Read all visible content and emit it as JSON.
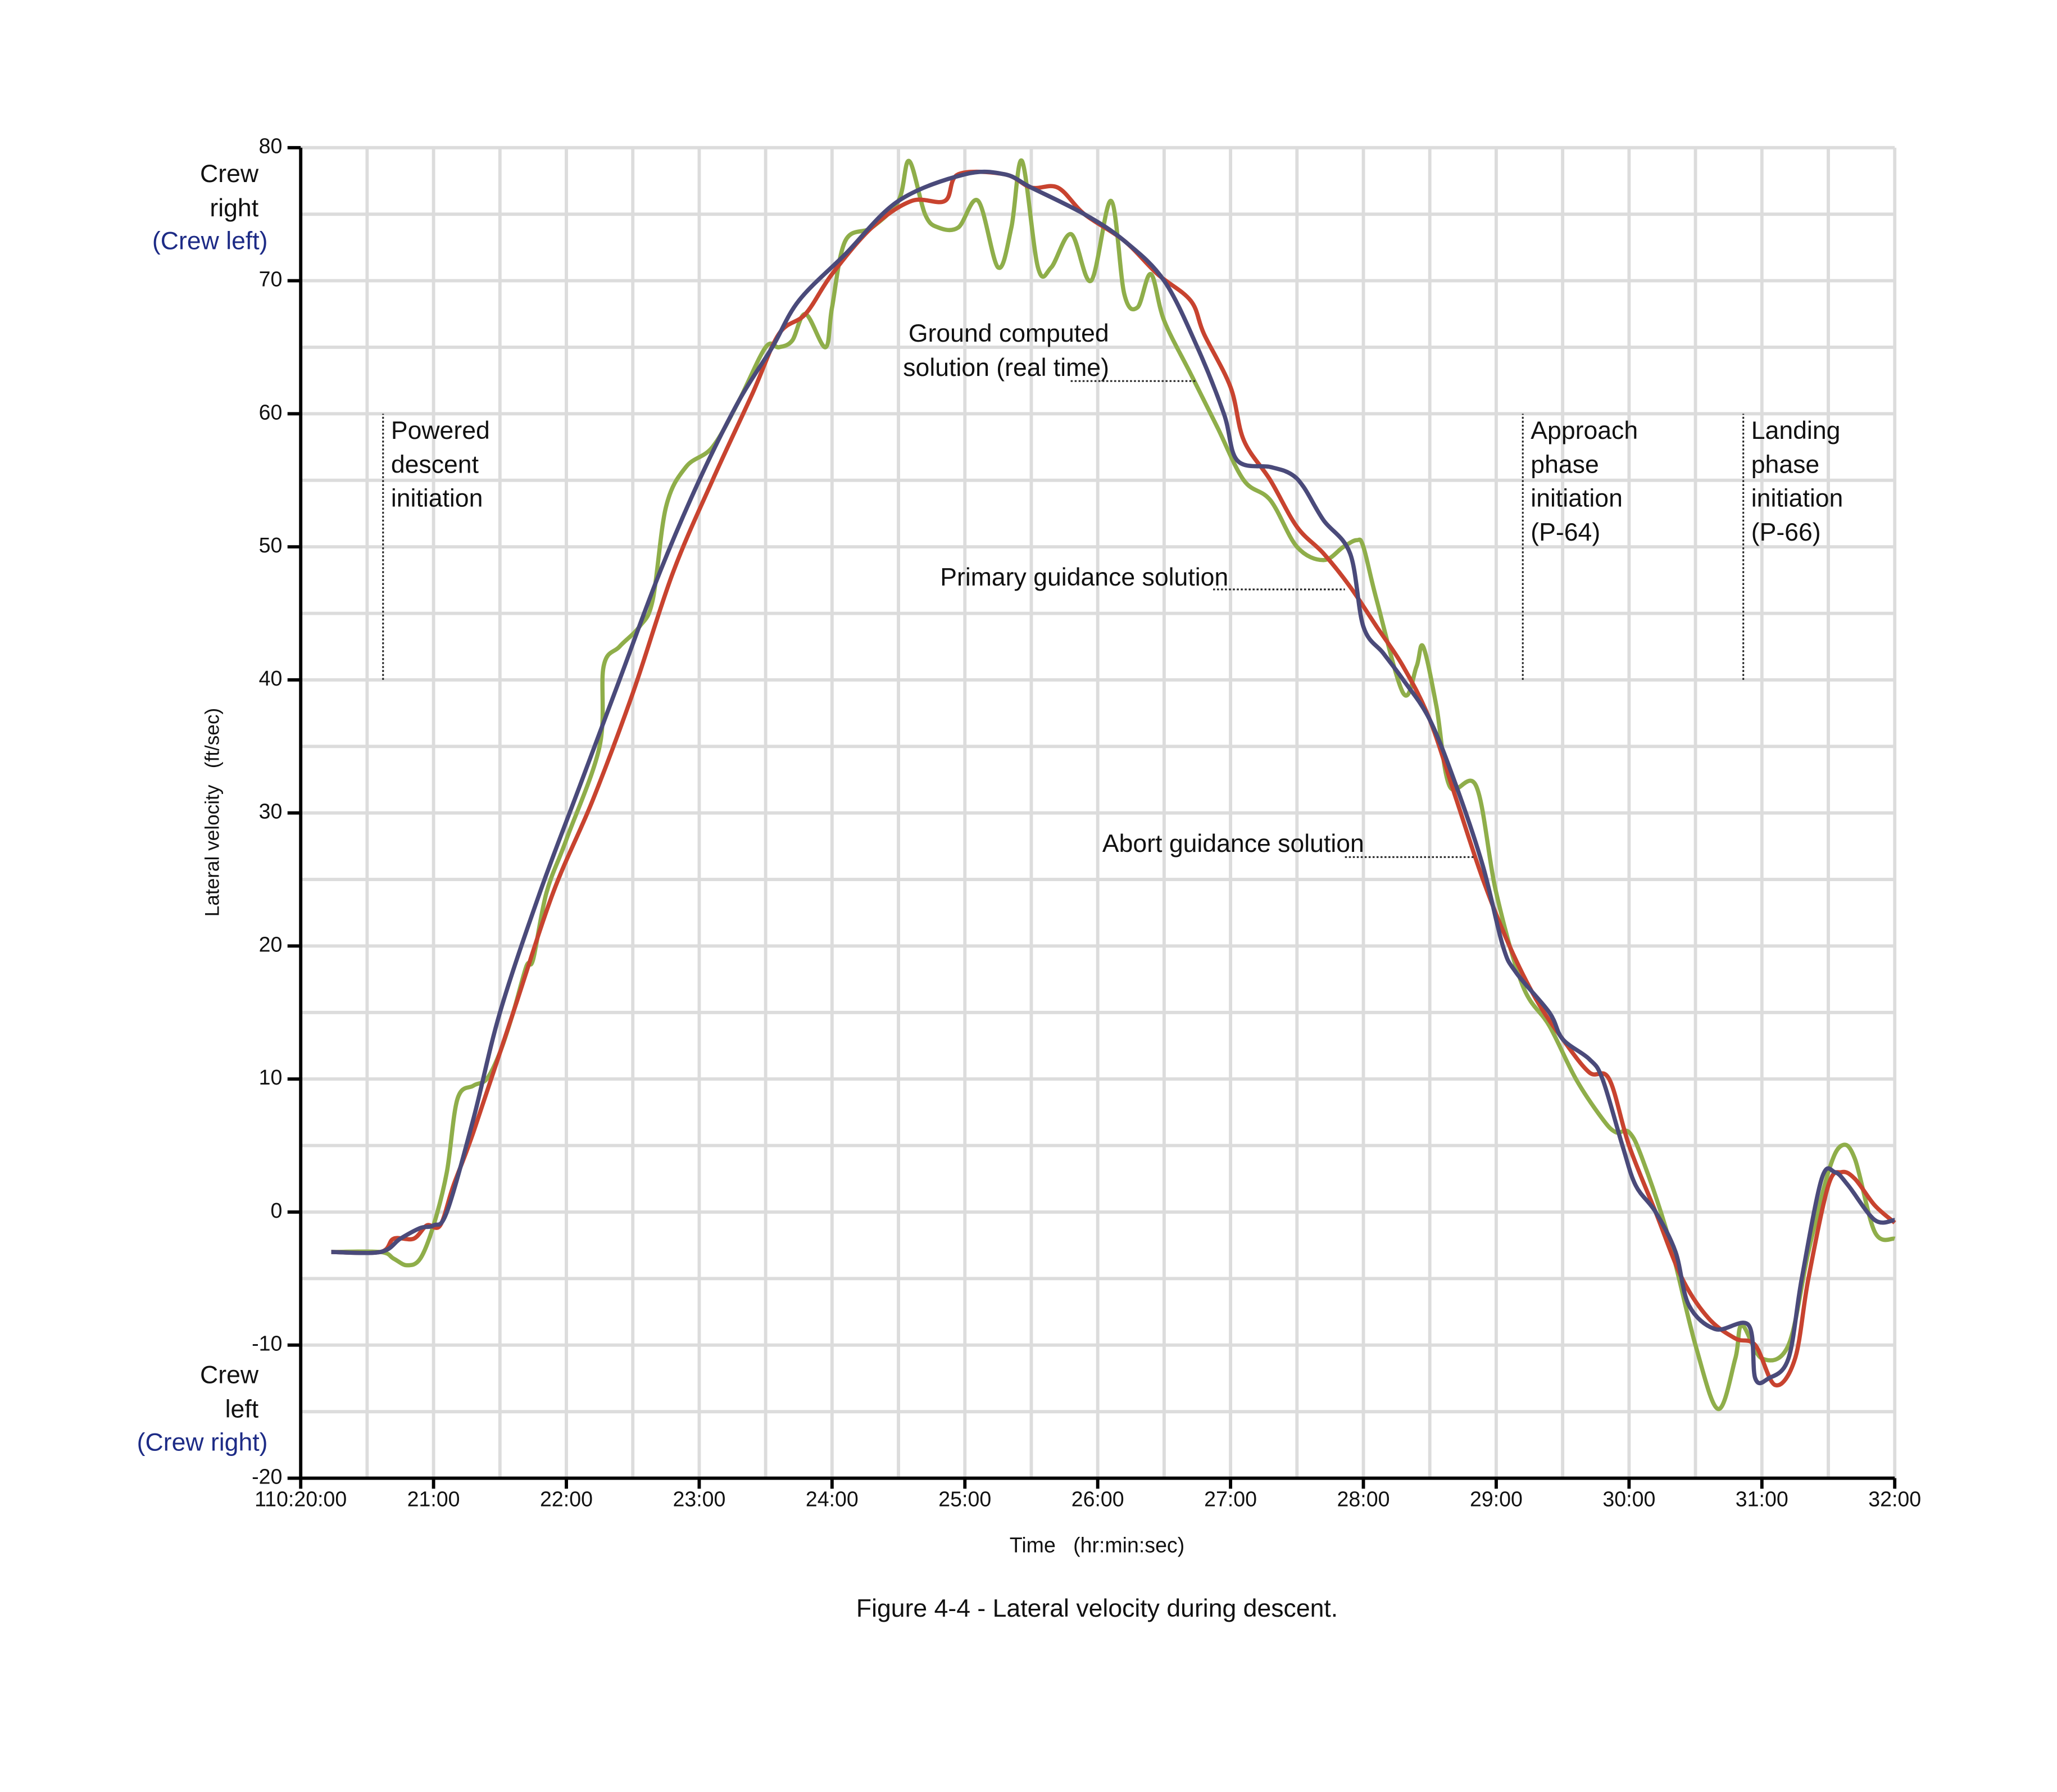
{
  "chart_data": {
    "type": "line",
    "caption": "Figure 4-4 - Lateral velocity during descent.",
    "x_label": "Time   (hr:min:sec)",
    "y_label": "Lateral velocity   (ft/sec)",
    "y_top_label": {
      "lines": [
        "Crew",
        "right"
      ],
      "alt": "(Crew left)"
    },
    "y_bottom_label": {
      "lines": [
        "Crew",
        "left"
      ],
      "alt": "(Crew right)"
    },
    "xlim": [
      20,
      32
    ],
    "xticks": [
      {
        "value": 20,
        "label": "110:20:00"
      },
      {
        "value": 21,
        "label": "21:00"
      },
      {
        "value": 22,
        "label": "22:00"
      },
      {
        "value": 23,
        "label": "23:00"
      },
      {
        "value": 24,
        "label": "24:00"
      },
      {
        "value": 25,
        "label": "25:00"
      },
      {
        "value": 26,
        "label": "26:00"
      },
      {
        "value": 27,
        "label": "27:00"
      },
      {
        "value": 28,
        "label": "28:00"
      },
      {
        "value": 29,
        "label": "29:00"
      },
      {
        "value": 30,
        "label": "30:00"
      },
      {
        "value": 31,
        "label": "31:00"
      },
      {
        "value": 32,
        "label": "32:00"
      }
    ],
    "minor_xticks": [
      20.5,
      21.5,
      22.5,
      23.5,
      24.5,
      25.5,
      26.5,
      27.5,
      28.5,
      29.5,
      30.5,
      31.5
    ],
    "ylim": [
      -20,
      80
    ],
    "yticks": [
      -20,
      -10,
      0,
      10,
      20,
      30,
      40,
      50,
      60,
      70,
      80
    ],
    "minor_yticks": [
      -15,
      -5,
      5,
      15,
      25,
      35,
      45,
      55,
      65,
      75
    ],
    "grid": true,
    "events": [
      {
        "x": 20.62,
        "ylim": [
          40,
          60
        ],
        "lines": [
          "Powered",
          "descent",
          "initiation"
        ]
      },
      {
        "x": 29.2,
        "ylim": [
          40,
          60
        ],
        "lines": [
          "Approach",
          "phase",
          "initiation",
          "(P-64)"
        ]
      },
      {
        "x": 30.86,
        "ylim": [
          40,
          60
        ],
        "lines": [
          "Landing",
          "phase",
          "initiation",
          "(P-66)"
        ]
      }
    ],
    "series": [
      {
        "annotation": [
          "Ground computed",
          "solution (real time)"
        ],
        "color": "#8fae4a",
        "x": [
          20.23,
          20.6,
          20.7,
          20.8,
          20.9,
          21.0,
          21.1,
          21.18,
          21.3,
          21.4,
          21.5,
          21.6,
          21.7,
          21.75,
          21.85,
          22.0,
          22.25,
          22.28,
          22.4,
          22.55,
          22.65,
          22.75,
          22.9,
          23.1,
          23.3,
          23.5,
          23.6,
          23.7,
          23.8,
          23.95,
          24.0,
          24.1,
          24.3,
          24.5,
          24.58,
          24.7,
          24.8,
          24.95,
          25.1,
          25.25,
          25.35,
          25.43,
          25.55,
          25.65,
          25.8,
          25.95,
          26.1,
          26.2,
          26.3,
          26.4,
          26.5,
          26.7,
          26.9,
          27.1,
          27.3,
          27.5,
          27.7,
          27.85,
          27.95,
          28.0,
          28.1,
          28.3,
          28.4,
          28.45,
          28.55,
          28.65,
          28.85,
          29.0,
          29.2,
          29.4,
          29.6,
          29.8,
          29.9,
          30.0,
          30.1,
          30.3,
          30.5,
          30.67,
          30.8,
          30.85,
          31.0,
          31.2,
          31.35,
          31.5,
          31.6,
          31.7,
          31.85,
          32.0
        ],
        "values": [
          -3,
          -3,
          -3.5,
          -4,
          -3.5,
          -1,
          3,
          8.5,
          9.5,
          10,
          12,
          15,
          18.5,
          19,
          24,
          28,
          35,
          41,
          42.5,
          44,
          46,
          53,
          56,
          57.5,
          61,
          65,
          65,
          65.5,
          67.5,
          65,
          68,
          73,
          74,
          76,
          79,
          75,
          74,
          74,
          76,
          71,
          74,
          79,
          71,
          71,
          73.5,
          70,
          76,
          69,
          68,
          70.5,
          67,
          63,
          59,
          55,
          53.5,
          50,
          49,
          50,
          50.5,
          50,
          46,
          39,
          41,
          42.5,
          38,
          32,
          32,
          24,
          17,
          14,
          10,
          7,
          6,
          6,
          4,
          -2,
          -10,
          -14.8,
          -11,
          -8.5,
          -11,
          -10,
          -3,
          3,
          5,
          4,
          -1.5,
          -2
        ]
      },
      {
        "annotation": [
          "Primary guidance solution"
        ],
        "color": "#c8432f",
        "x": [
          20.23,
          20.6,
          20.7,
          20.85,
          20.95,
          21.05,
          21.15,
          21.3,
          21.6,
          21.9,
          22.2,
          22.5,
          22.8,
          23.1,
          23.4,
          23.6,
          23.8,
          24.0,
          24.3,
          24.6,
          24.85,
          24.95,
          25.3,
          25.5,
          25.7,
          25.9,
          26.2,
          26.45,
          26.7,
          26.8,
          27.0,
          27.1,
          27.3,
          27.5,
          27.7,
          27.9,
          28.1,
          28.3,
          28.5,
          28.7,
          28.9,
          29.1,
          29.3,
          29.5,
          29.7,
          29.85,
          30.0,
          30.2,
          30.4,
          30.6,
          30.8,
          30.95,
          31.1,
          31.25,
          31.35,
          31.5,
          31.6,
          31.7,
          31.85,
          32.0
        ],
        "values": [
          -3,
          -3,
          -2,
          -2,
          -1,
          -1,
          2,
          6,
          15,
          24,
          31,
          39,
          48,
          55,
          61.5,
          66,
          67.5,
          70.5,
          74,
          76,
          76,
          78,
          78,
          77,
          77,
          75,
          73,
          70.5,
          68.5,
          66,
          62,
          58,
          55,
          51.5,
          49.5,
          47,
          44,
          41,
          37,
          31,
          25,
          20,
          16,
          13,
          10.5,
          10,
          5,
          0,
          -5,
          -8,
          -9.5,
          -10,
          -13,
          -11,
          -5,
          2,
          3,
          2.5,
          0.5,
          -0.8
        ]
      },
      {
        "annotation": [
          "Abort guidance solution"
        ],
        "color": "#4a4a7a",
        "x": [
          20.23,
          20.6,
          20.75,
          20.9,
          21.0,
          21.1,
          21.3,
          21.5,
          21.8,
          22.1,
          22.4,
          22.7,
          23.0,
          23.3,
          23.55,
          23.75,
          24.1,
          24.5,
          25.0,
          25.3,
          25.5,
          25.9,
          26.2,
          26.5,
          26.75,
          26.95,
          27.05,
          27.3,
          27.45,
          27.55,
          27.7,
          27.9,
          28.0,
          28.15,
          28.3,
          28.5,
          28.7,
          28.9,
          29.05,
          29.15,
          29.4,
          29.5,
          29.7,
          29.8,
          29.95,
          30.05,
          30.2,
          30.35,
          30.45,
          30.65,
          30.9,
          30.95,
          31.05,
          31.2,
          31.3,
          31.45,
          31.55,
          31.65,
          31.85,
          32.0
        ],
        "values": [
          -3,
          -3,
          -2,
          -1.2,
          -1,
          0,
          7,
          15,
          24,
          32,
          40,
          48,
          55,
          61,
          65,
          68.5,
          72,
          76,
          78,
          78,
          77,
          75,
          73,
          70,
          65,
          60,
          56.5,
          56,
          55.5,
          54.5,
          52,
          49.5,
          44,
          42,
          40,
          37,
          32,
          26,
          20,
          18,
          15,
          13,
          11.5,
          10,
          5,
          2,
          0,
          -3,
          -7,
          -8.8,
          -8.5,
          -12.5,
          -12.5,
          -11,
          -5,
          2.5,
          3,
          2,
          -0.6,
          -0.6
        ]
      }
    ]
  }
}
